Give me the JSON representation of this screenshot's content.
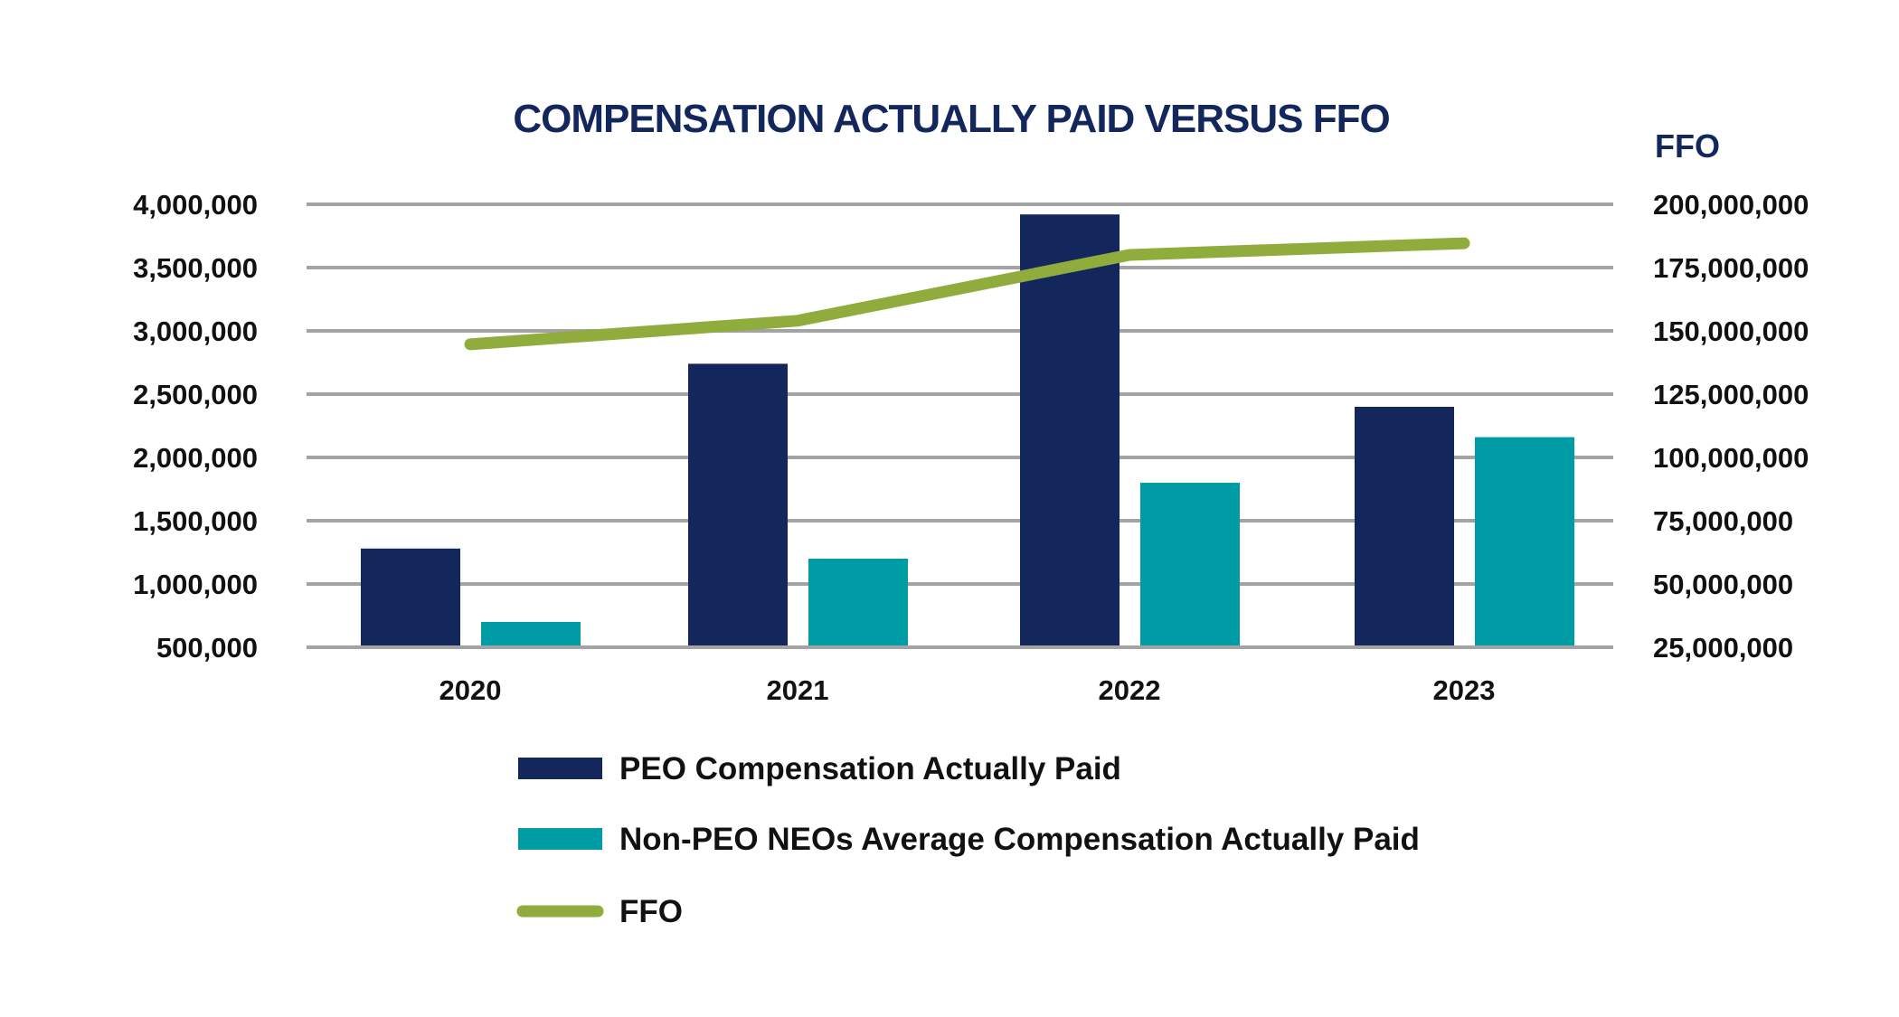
{
  "chart_data": {
    "type": "bar",
    "title": "COMPENSATION ACTUALLY PAID VERSUS FFO",
    "categories": [
      "2020",
      "2021",
      "2022",
      "2023"
    ],
    "left_axis": {
      "ylim": [
        500000,
        4000000
      ],
      "ticks": [
        "4,000,000",
        "3,500,000",
        "3,000,000",
        "2,500,000",
        "2,000,000",
        "1,500,000",
        "1,000,000",
        "500,000"
      ],
      "tick_values": [
        4000000,
        3500000,
        3000000,
        2500000,
        2000000,
        1500000,
        1000000,
        500000
      ]
    },
    "right_axis": {
      "label": "FFO",
      "ylim": [
        25000000,
        200000000
      ],
      "ticks": [
        "200,000,000",
        "175,000,000",
        "150,000,000",
        "125,000,000",
        "100,000,000",
        "75,000,000",
        "50,000,000",
        "25,000,000"
      ]
    },
    "grid": true,
    "legend_position": "bottom",
    "series": [
      {
        "name": "PEO Compensation Actually Paid",
        "type": "bar",
        "axis": "left",
        "color": "#13275c",
        "values": [
          1280000,
          2740000,
          3920000,
          2400000
        ]
      },
      {
        "name": "Non-PEO NEOs Average Compensation Actually Paid",
        "type": "bar",
        "axis": "left",
        "color": "#009ca6",
        "values": [
          700000,
          1200000,
          1800000,
          2160000
        ]
      },
      {
        "name": "FFO",
        "type": "line",
        "axis": "right",
        "color": "#8fac3c",
        "values": [
          144700000,
          154000000,
          180000000,
          184600000
        ]
      }
    ]
  }
}
